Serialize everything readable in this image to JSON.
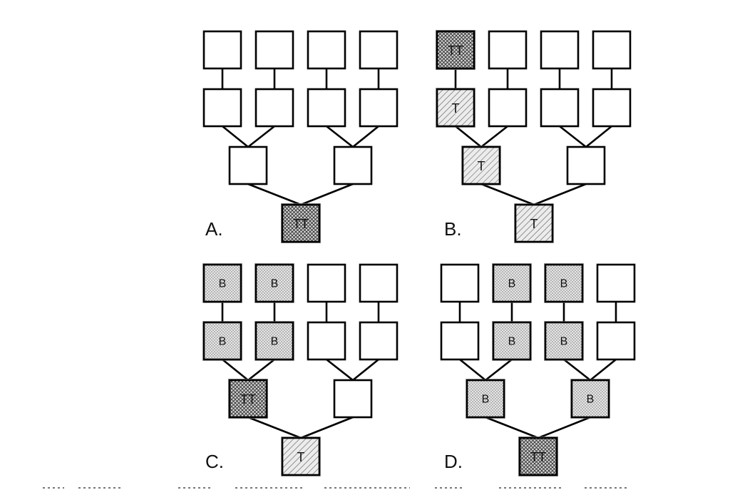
{
  "legend": {
    "empty": "",
    "hatch": "T",
    "cross": "TT",
    "dots": "B"
  },
  "panels": [
    {
      "label": "A.",
      "nodes": [
        {
          "id": "l1",
          "state": "empty"
        },
        {
          "id": "l2",
          "state": "empty"
        },
        {
          "id": "l3",
          "state": "empty"
        },
        {
          "id": "l4",
          "state": "empty"
        },
        {
          "id": "m1",
          "state": "empty"
        },
        {
          "id": "m2",
          "state": "empty"
        },
        {
          "id": "m3",
          "state": "empty"
        },
        {
          "id": "m4",
          "state": "empty"
        },
        {
          "id": "p1",
          "state": "empty"
        },
        {
          "id": "p2",
          "state": "empty"
        },
        {
          "id": "root",
          "state": "cross"
        }
      ]
    },
    {
      "label": "B.",
      "nodes": [
        {
          "id": "l1",
          "state": "cross"
        },
        {
          "id": "l2",
          "state": "empty"
        },
        {
          "id": "l3",
          "state": "empty"
        },
        {
          "id": "l4",
          "state": "empty"
        },
        {
          "id": "m1",
          "state": "hatch"
        },
        {
          "id": "m2",
          "state": "empty"
        },
        {
          "id": "m3",
          "state": "empty"
        },
        {
          "id": "m4",
          "state": "empty"
        },
        {
          "id": "p1",
          "state": "hatch"
        },
        {
          "id": "p2",
          "state": "empty"
        },
        {
          "id": "root",
          "state": "hatch"
        }
      ]
    },
    {
      "label": "C.",
      "nodes": [
        {
          "id": "l1",
          "state": "dots"
        },
        {
          "id": "l2",
          "state": "dots"
        },
        {
          "id": "l3",
          "state": "empty"
        },
        {
          "id": "l4",
          "state": "empty"
        },
        {
          "id": "m1",
          "state": "dots"
        },
        {
          "id": "m2",
          "state": "dots"
        },
        {
          "id": "m3",
          "state": "empty"
        },
        {
          "id": "m4",
          "state": "empty"
        },
        {
          "id": "p1",
          "state": "cross"
        },
        {
          "id": "p2",
          "state": "empty"
        },
        {
          "id": "root",
          "state": "hatch"
        }
      ]
    },
    {
      "label": "D.",
      "nodes": [
        {
          "id": "l1",
          "state": "empty"
        },
        {
          "id": "l2",
          "state": "dots"
        },
        {
          "id": "l3",
          "state": "dots"
        },
        {
          "id": "l4",
          "state": "empty"
        },
        {
          "id": "m1",
          "state": "empty"
        },
        {
          "id": "m2",
          "state": "dots"
        },
        {
          "id": "m3",
          "state": "dots"
        },
        {
          "id": "m4",
          "state": "empty"
        },
        {
          "id": "p1",
          "state": "dots"
        },
        {
          "id": "p2",
          "state": "dots"
        },
        {
          "id": "root",
          "state": "cross"
        }
      ]
    }
  ]
}
